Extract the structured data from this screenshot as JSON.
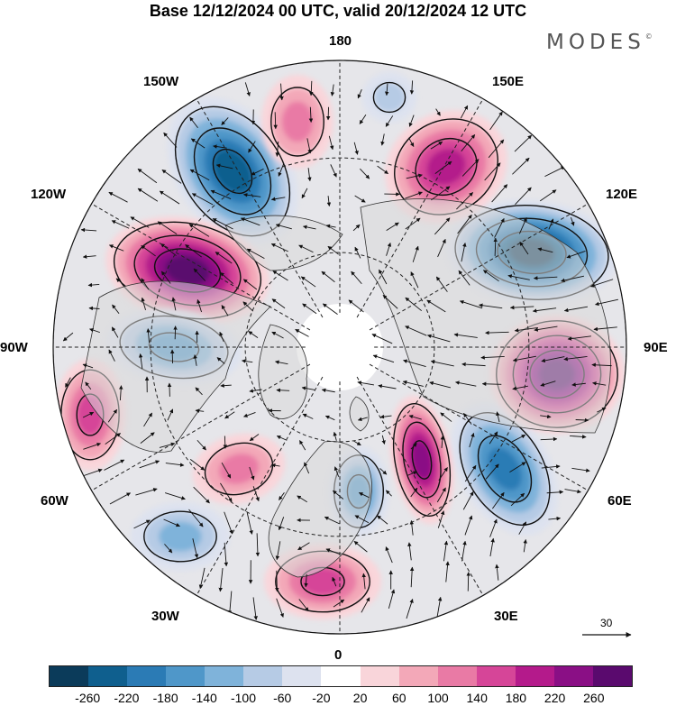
{
  "title": "Base 12/12/2024 00 UTC, valid 20/12/2024 12 UTC",
  "brand": "MODES",
  "brand_mark": "©",
  "longitude_labels": {
    "lon_180": "180",
    "lon_150e": "150E",
    "lon_120e": "120E",
    "lon_90e": "90E",
    "lon_60e": "60E",
    "lon_30e": "30E",
    "lon_0": "0",
    "lon_30w": "30W",
    "lon_60w": "60W",
    "lon_90w": "90W",
    "lon_120w": "120W",
    "lon_150w": "150W"
  },
  "reference_vector": {
    "value": "30"
  },
  "colorbar": {
    "tick_labels": [
      "-260",
      "-220",
      "-180",
      "-140",
      "-100",
      "-60",
      "-20",
      "20",
      "60",
      "100",
      "140",
      "180",
      "220",
      "260"
    ],
    "colors": [
      "#0b3b5a",
      "#0f5f8e",
      "#2b7bb5",
      "#4f97c9",
      "#7fb3da",
      "#b6cbe5",
      "#dde2ef",
      "#ffffff",
      "#f9d5da",
      "#f3a8b8",
      "#e97aa5",
      "#d64598",
      "#b41a8b",
      "#8a0f85",
      "#5a0a6e"
    ]
  },
  "anomalies": [
    {
      "id": "neg-150w",
      "sign": "neg",
      "max": 240
    },
    {
      "id": "pos-120w",
      "sign": "pos",
      "max": 260
    },
    {
      "id": "neg-100w",
      "sign": "neg",
      "max": 160
    },
    {
      "id": "pos-70w",
      "sign": "pos",
      "max": 140
    },
    {
      "id": "pos-50w",
      "sign": "pos",
      "max": 100
    },
    {
      "id": "neg-45w",
      "sign": "neg",
      "max": 120
    },
    {
      "id": "pos-10e",
      "sign": "pos",
      "max": 150
    },
    {
      "id": "neg-10w",
      "sign": "neg",
      "max": 140
    },
    {
      "id": "pos-30e",
      "sign": "pos",
      "max": 220
    },
    {
      "id": "neg-55e",
      "sign": "neg",
      "max": 180
    },
    {
      "id": "pos-95e",
      "sign": "pos",
      "max": 260
    },
    {
      "id": "neg-125e",
      "sign": "neg",
      "max": 260
    },
    {
      "id": "pos-150e",
      "sign": "pos",
      "max": 180
    },
    {
      "id": "pos-170w",
      "sign": "pos",
      "max": 100
    },
    {
      "id": "neg-170e",
      "sign": "neg",
      "max": 60
    }
  ]
}
